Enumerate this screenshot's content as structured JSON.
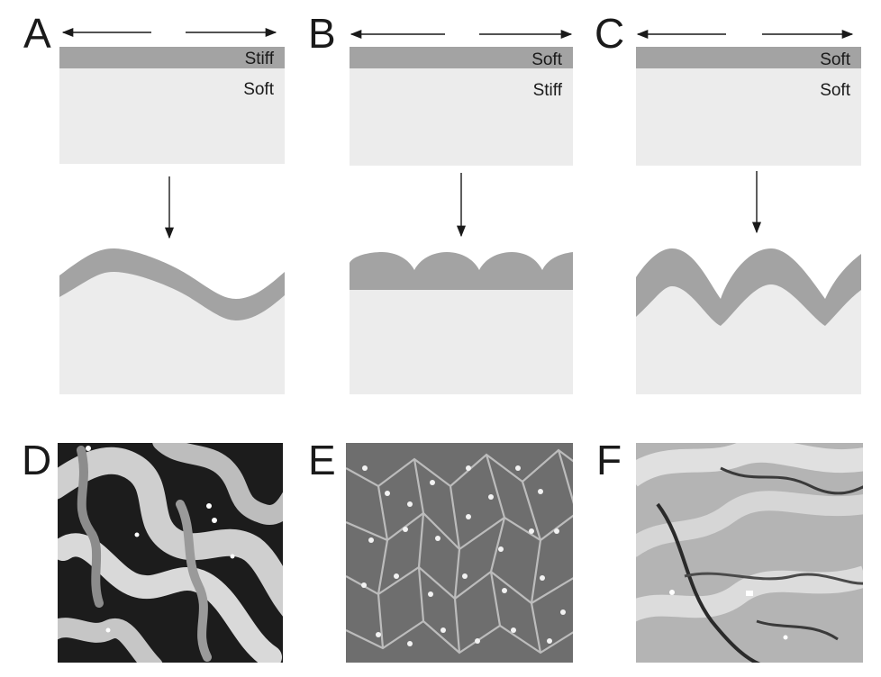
{
  "panels": {
    "A": {
      "letter": "A",
      "top_label": "Stiff",
      "bottom_label": "Soft"
    },
    "B": {
      "letter": "B",
      "top_label": "Soft",
      "bottom_label": "Stiff"
    },
    "C": {
      "letter": "C",
      "top_label": "Soft",
      "bottom_label": "Soft"
    },
    "D": {
      "letter": "D"
    },
    "E": {
      "letter": "E"
    },
    "F": {
      "letter": "F"
    }
  },
  "colors": {
    "film": "#a3a3a3",
    "substrate": "#ececec",
    "ink": "#1a1a1a"
  }
}
